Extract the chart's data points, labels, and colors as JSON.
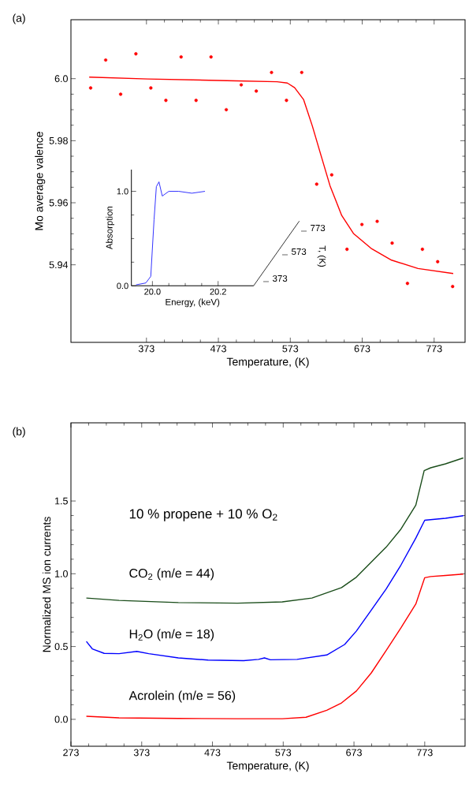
{
  "chart_data": [
    {
      "type": "scatter",
      "title": "(a)",
      "xlabel": "Temperature, (K)",
      "ylabel": "Mo average valence",
      "xlim": [
        268,
        816
      ],
      "ylim": [
        5.915,
        6.019
      ],
      "xticks": [
        373,
        473,
        573,
        673,
        773
      ],
      "yticks": [
        5.94,
        5.96,
        5.98,
        {
          "value": 6.0,
          "label": "6.0"
        }
      ],
      "series": [
        {
          "type": "scatter",
          "color": "#ff0000",
          "marker": "circle",
          "x": [
            295.4,
            316.3,
            337.1,
            358.3,
            379.1,
            400.0,
            421.2,
            442.0,
            462.8,
            484.0,
            504.8,
            525.7,
            546.9,
            567.7,
            588.9,
            609.7,
            630.6,
            651.8,
            672.6,
            693.8,
            714.6,
            735.9,
            756.7,
            777.9,
            798.7
          ],
          "values": [
            5.997,
            6.006,
            5.995,
            6.008,
            5.997,
            5.993,
            6.007,
            5.993,
            6.007,
            5.99,
            5.998,
            5.996,
            6.002,
            5.993,
            6.002,
            5.966,
            5.969,
            5.945,
            5.953,
            5.954,
            5.947,
            5.934,
            5.945,
            5.941,
            5.933
          ]
        },
        {
          "type": "line",
          "color": "#ff0000",
          "x": [
            293.4,
            375.0,
            497.5,
            554.6,
            568.9,
            579.0,
            591.4,
            603.7,
            615.9,
            628.2,
            644.5,
            660.8,
            685.3,
            713.8,
            750.6,
            799.5
          ],
          "values": [
            6.0005,
            5.9999,
            5.9993,
            5.999,
            5.9986,
            5.9971,
            5.9933,
            5.9847,
            5.9751,
            5.9655,
            5.9559,
            5.9501,
            5.9453,
            5.9415,
            5.9388,
            5.9372
          ]
        }
      ]
    },
    {
      "type": "line",
      "xlabel": "Energy, (keV)",
      "ylabel": "Absorption",
      "xlim": [
        19.936,
        20.308
      ],
      "ylim": [
        0,
        1.23
      ],
      "xticks": [
        {
          "value": 20.0,
          "label": "20.0"
        },
        {
          "value": 20.2,
          "label": "20.2"
        }
      ],
      "yticks": [
        {
          "value": 0,
          "label": "0.0"
        },
        {
          "value": 1,
          "label": "1.0"
        }
      ],
      "annotations": [
        "T, (K)",
        "373",
        "573",
        "773"
      ],
      "series": [
        {
          "color": "#0000ff",
          "x": [
            19.95,
            19.98,
            19.995,
            20.005,
            20.012,
            20.02,
            20.03,
            20.05,
            20.08,
            20.12,
            20.16
          ],
          "values": [
            0.01,
            0.03,
            0.1,
            0.7,
            1.05,
            1.1,
            0.95,
            1.0,
            1.0,
            0.98,
            1.0
          ]
        }
      ]
    },
    {
      "type": "line",
      "title": "(b)",
      "xlabel": "Temperature, (K)",
      "ylabel": "Normalized MS ion currents",
      "xlim": [
        273,
        830
      ],
      "ylim": [
        -0.185,
        2.037
      ],
      "xticks": [
        273,
        373,
        473,
        573,
        673,
        773
      ],
      "yticks": [
        {
          "value": 0,
          "label": "0.0"
        },
        0.5,
        {
          "value": 1,
          "label": "1.0"
        },
        1.5
      ],
      "annotations": [
        "10 % propene + 10 % O$_{2}$"
      ],
      "series": [
        {
          "name": "CO$_{2}$ (m/e = 44)",
          "color": "#1a4d1a",
          "x": [
            294.8,
            341.0,
            424.8,
            508.7,
            571.7,
            613.6,
            655.5,
            676.5,
            697.5,
            718.5,
            739.4,
            760.4,
            772.2,
            781.4,
            802.4,
            827.5
          ],
          "values": [
            0.833,
            0.817,
            0.802,
            0.798,
            0.807,
            0.833,
            0.905,
            0.977,
            1.08,
            1.183,
            1.307,
            1.471,
            1.708,
            1.728,
            1.755,
            1.796
          ]
        },
        {
          "name": "H$_{2}$O (m/e = 18)",
          "color": "#0000ff",
          "x": [
            294.8,
            303.2,
            320.0,
            341.0,
            366.1,
            382.9,
            424.8,
            466.8,
            517.1,
            538.1,
            546.5,
            554.8,
            592.6,
            634.6,
            659.8,
            676.5,
            697.5,
            718.5,
            739.4,
            760.4,
            773.0,
            781.4,
            802.4,
            827.5
          ],
          "values": [
            0.535,
            0.484,
            0.453,
            0.451,
            0.467,
            0.451,
            0.422,
            0.407,
            0.403,
            0.412,
            0.422,
            0.409,
            0.412,
            0.442,
            0.514,
            0.607,
            0.751,
            0.895,
            1.06,
            1.245,
            1.368,
            1.372,
            1.381,
            1.399
          ]
        },
        {
          "name": "Acrolein (m/e = 56)",
          "color": "#ff0000",
          "x": [
            294.8,
            341.0,
            424.8,
            508.7,
            571.7,
            605.2,
            634.6,
            655.5,
            676.5,
            697.5,
            718.5,
            739.4,
            760.4,
            773.0,
            781.4,
            802.4,
            827.5
          ],
          "values": [
            0.021,
            0.01,
            0.006,
            0.004,
            0.004,
            0.014,
            0.062,
            0.113,
            0.195,
            0.319,
            0.473,
            0.628,
            0.792,
            0.973,
            0.981,
            0.988,
            0.998
          ]
        }
      ]
    }
  ]
}
